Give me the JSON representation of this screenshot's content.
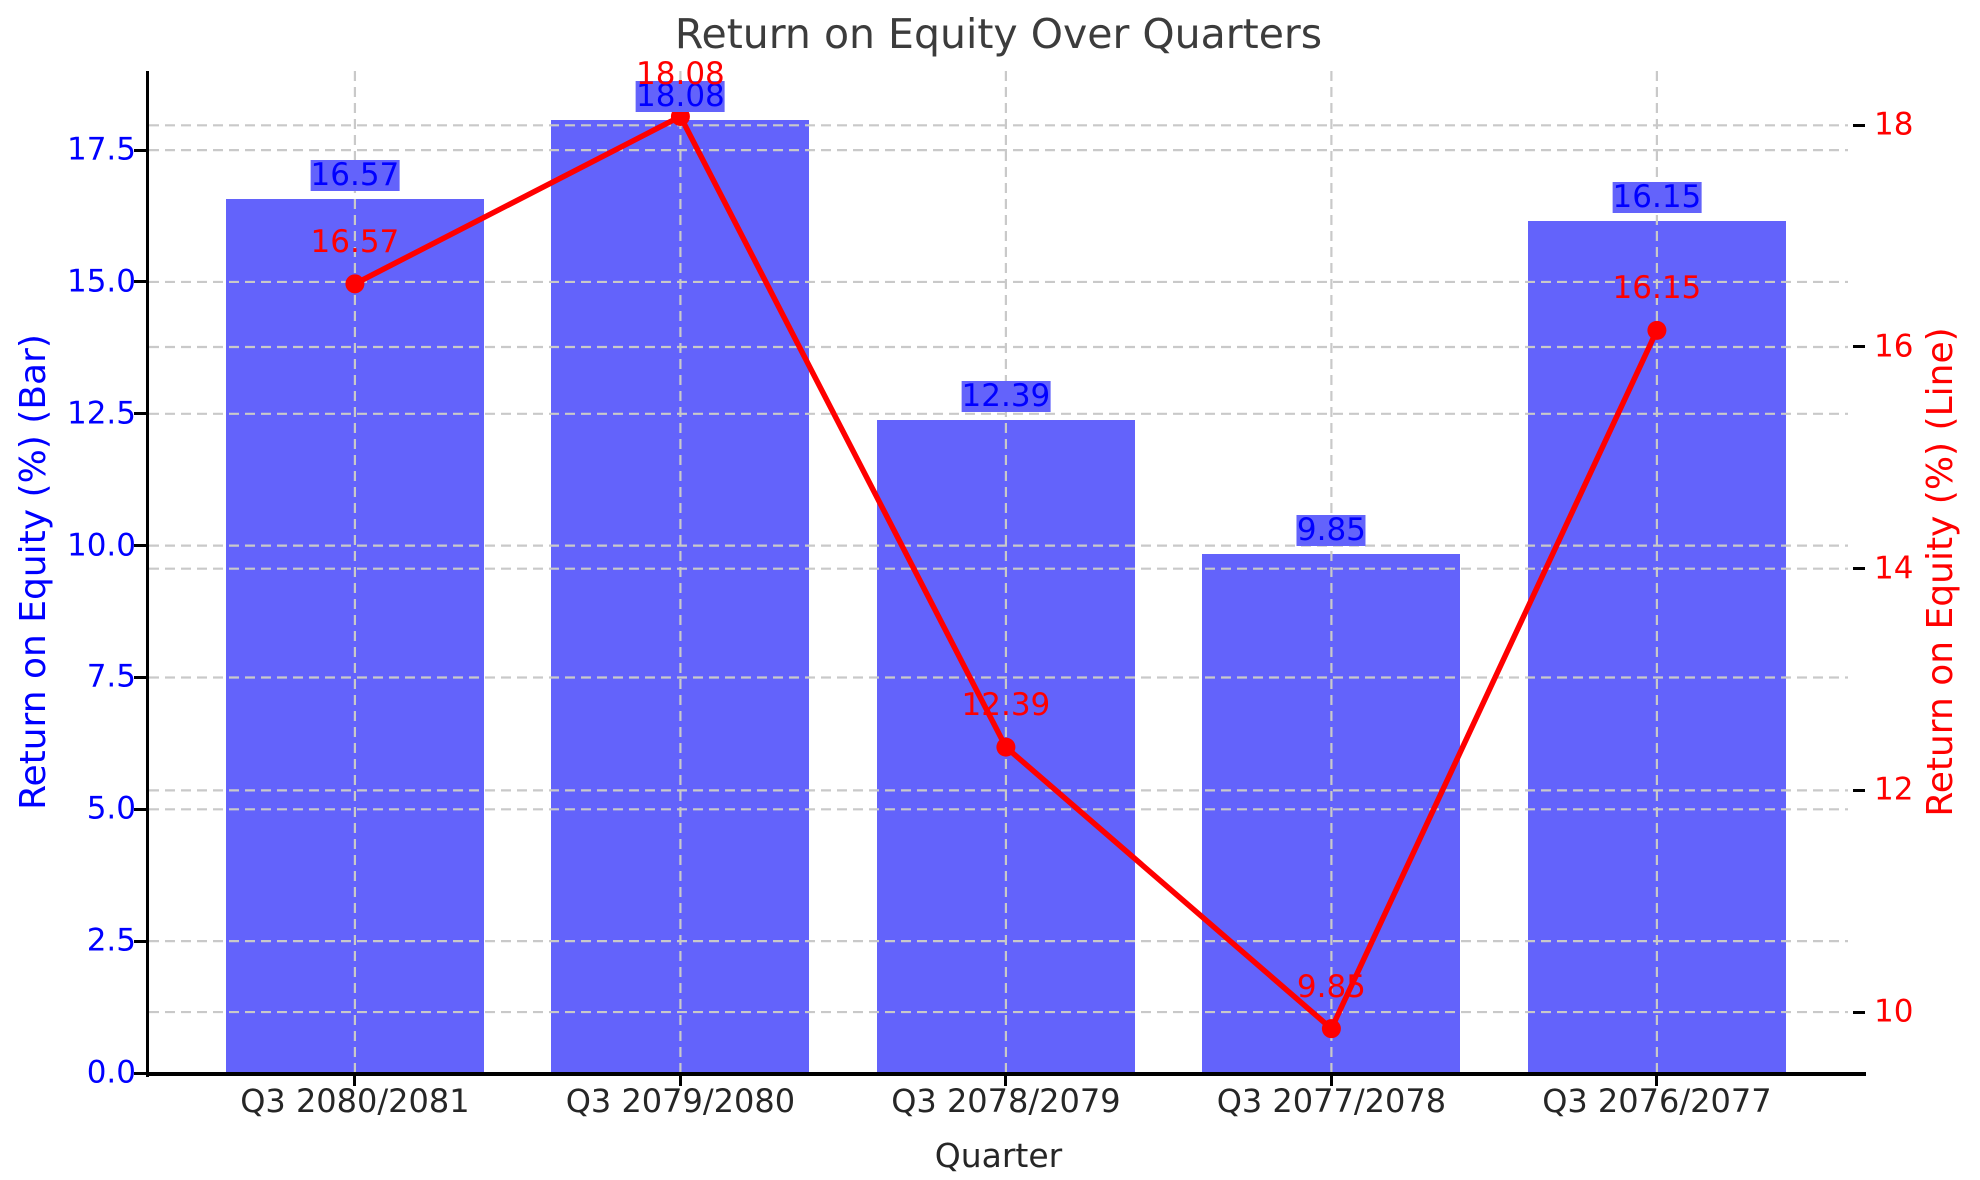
{
  "title": "Return on Equity Over Quarters",
  "chart_data": {
    "type": "bar",
    "subtype": "dual-axis-bar-and-line",
    "title": "Return on Equity Over Quarters",
    "xlabel": "Quarter",
    "ylabel_left": "Return on Equity (%) (Bar)",
    "ylabel_right": "Return on Equity (%) (Line)",
    "categories": [
      "Q3 2080/2081",
      "Q3 2079/2080",
      "Q3 2078/2079",
      "Q3 2077/2078",
      "Q3 2076/2077"
    ],
    "series": [
      {
        "name": "Return on Equity (%) (Bar)",
        "type": "bar",
        "axis": "left",
        "color": "#6363fb",
        "values": [
          16.57,
          18.08,
          12.39,
          9.85,
          16.15
        ]
      },
      {
        "name": "Return on Equity (%) (Line)",
        "type": "line",
        "axis": "right",
        "color": "#ff0000",
        "values": [
          16.57,
          18.08,
          12.39,
          9.85,
          16.15
        ]
      }
    ],
    "data_labels_bar": [
      "16.57",
      "18.08",
      "12.39",
      "9.85",
      "16.15"
    ],
    "data_labels_line": [
      "16.57",
      "18.08",
      "12.39",
      "9.85",
      "16.15"
    ],
    "left_axis": {
      "ticks": [
        0.0,
        2.5,
        5.0,
        7.5,
        10.0,
        12.5,
        15.0,
        17.5
      ],
      "range": [
        0,
        19.0
      ],
      "tick_label_color": "#0000ff"
    },
    "right_axis": {
      "ticks": [
        10,
        12,
        14,
        16,
        18
      ],
      "range": [
        9.45,
        18.49
      ],
      "tick_label_color": "#ff0000"
    },
    "grid": {
      "visible": true,
      "style": "dashed",
      "color": "#c9c9c9",
      "horizontal": "both-axes-ticks",
      "vertical": "at-category-centers"
    },
    "legend": "none",
    "colors": {
      "bar_fill": "#6363fb",
      "line": "#ff0000",
      "title_text": "#3c3c3c",
      "axis_text": "#262626"
    }
  }
}
